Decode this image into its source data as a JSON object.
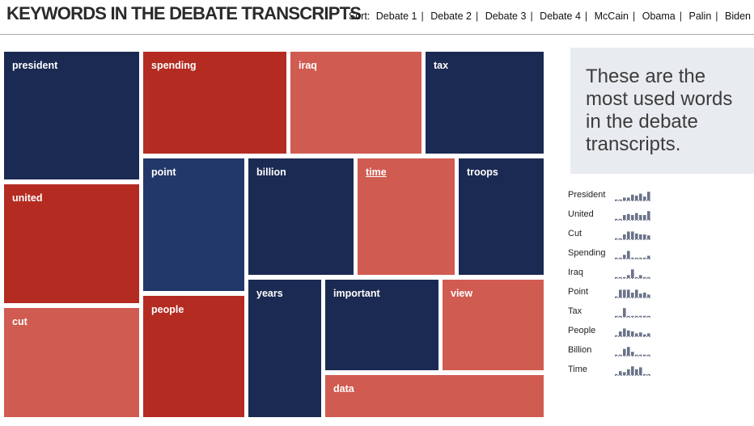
{
  "header": {
    "title": "KEYWORDS IN THE DEBATE TRANSCRIPTS",
    "sort_label": "Sort:",
    "sort_options": [
      "Debate 1",
      "Debate 2",
      "Debate 3",
      "Debate 4",
      "McCain",
      "Obama",
      "Palin",
      "Biden"
    ]
  },
  "colors": {
    "navy": "#1b2a52",
    "blue": "#22386a",
    "red": "#b42b22",
    "salmon": "#d05b51",
    "spark": "#6b7388"
  },
  "tiles": [
    {
      "word": "president",
      "color": "navy"
    },
    {
      "word": "spending",
      "color": "red"
    },
    {
      "word": "iraq",
      "color": "salmon"
    },
    {
      "word": "tax",
      "color": "navy"
    },
    {
      "word": "united",
      "color": "red"
    },
    {
      "word": "point",
      "color": "blue"
    },
    {
      "word": "billion",
      "color": "navy"
    },
    {
      "word": "time",
      "color": "salmon",
      "underlined": true
    },
    {
      "word": "troops",
      "color": "navy"
    },
    {
      "word": "cut",
      "color": "salmon"
    },
    {
      "word": "people",
      "color": "red"
    },
    {
      "word": "years",
      "color": "navy"
    },
    {
      "word": "important",
      "color": "navy"
    },
    {
      "word": "view",
      "color": "salmon"
    },
    {
      "word": "data",
      "color": "salmon"
    }
  ],
  "info_text": "These are the most used words in the debate transcripts.",
  "sparklines": [
    {
      "label": "President",
      "values": [
        0.1,
        0.1,
        0.3,
        0.3,
        0.6,
        0.5,
        0.7,
        0.4,
        0.9
      ]
    },
    {
      "label": "United",
      "values": [
        0.1,
        0.1,
        0.5,
        0.6,
        0.5,
        0.7,
        0.5,
        0.5,
        0.9
      ]
    },
    {
      "label": "Cut",
      "values": [
        0.1,
        0.1,
        0.5,
        0.8,
        0.8,
        0.6,
        0.5,
        0.5,
        0.4
      ]
    },
    {
      "label": "Spending",
      "values": [
        0.1,
        0.1,
        0.4,
        0.8,
        0.1,
        0.1,
        0.1,
        0.1,
        0.3
      ]
    },
    {
      "label": "Iraq",
      "values": [
        0.1,
        0.1,
        0.1,
        0.3,
        0.9,
        0.1,
        0.3,
        0.1,
        0.1
      ]
    },
    {
      "label": "Point",
      "values": [
        0.1,
        0.8,
        0.8,
        0.8,
        0.5,
        0.8,
        0.4,
        0.5,
        0.3
      ]
    },
    {
      "label": "Tax",
      "values": [
        0.1,
        0.1,
        0.9,
        0.1,
        0.1,
        0.1,
        0.1,
        0.1,
        0.1
      ]
    },
    {
      "label": "People",
      "values": [
        0.1,
        0.5,
        0.8,
        0.6,
        0.5,
        0.3,
        0.4,
        0.2,
        0.3
      ]
    },
    {
      "label": "Billion",
      "values": [
        0.1,
        0.1,
        0.7,
        0.9,
        0.4,
        0.1,
        0.1,
        0.1,
        0.1
      ]
    },
    {
      "label": "Time",
      "values": [
        0.1,
        0.4,
        0.3,
        0.6,
        0.9,
        0.6,
        0.8,
        0.1,
        0.1
      ]
    }
  ]
}
